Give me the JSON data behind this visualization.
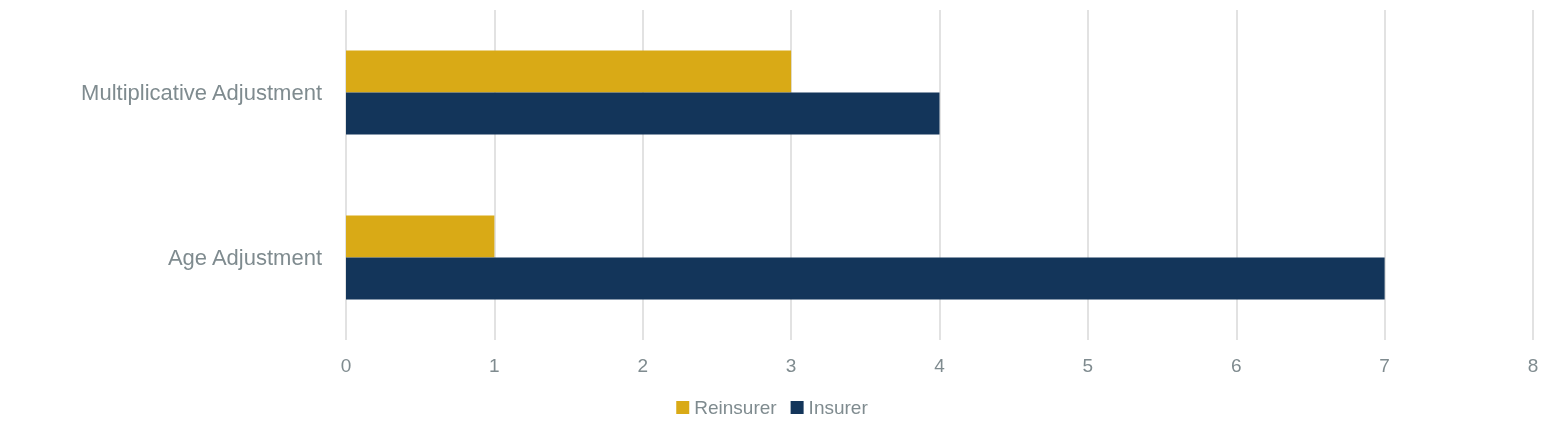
{
  "chart_data": {
    "type": "bar",
    "orientation": "horizontal",
    "categories": [
      "Multiplicative Adjustment",
      "Age Adjustment"
    ],
    "series": [
      {
        "name": "Reinsurer",
        "color": "#d9aa16",
        "values": [
          3,
          1
        ]
      },
      {
        "name": "Insurer",
        "color": "#13355a",
        "values": [
          4,
          7
        ]
      }
    ],
    "xlim": [
      0,
      8
    ],
    "xticks": [
      0,
      1,
      2,
      3,
      4,
      5,
      6,
      7,
      8
    ],
    "grid": "x",
    "legend": "bottom"
  }
}
